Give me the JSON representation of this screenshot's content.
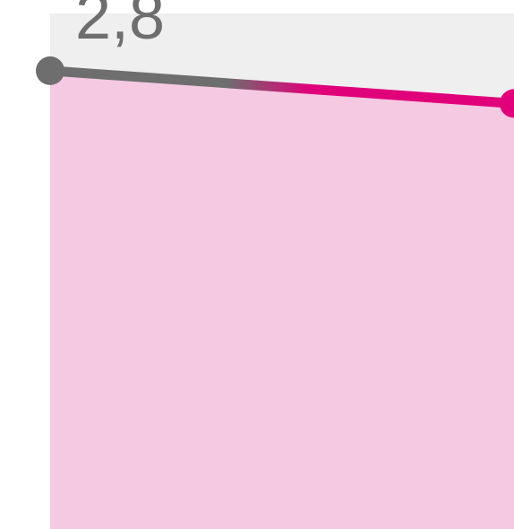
{
  "chart_data": {
    "type": "area",
    "x": [
      "",
      ""
    ],
    "values": [
      2.8,
      2.6
    ],
    "data_labels": [
      "2,8",
      ""
    ],
    "ylim": [
      0,
      3.15
    ],
    "grid": false,
    "legend": "none",
    "title": "",
    "xlabel": "",
    "ylabel": ""
  },
  "colors": {
    "plot_background": "#efefef",
    "area_fill": "#f5c9e2",
    "line_start": "#6e6e6e",
    "line_end": "#e0007a",
    "marker_start": "#6e6e6e",
    "marker_end": "#e0007a",
    "label_text": "#6e6e6e"
  }
}
